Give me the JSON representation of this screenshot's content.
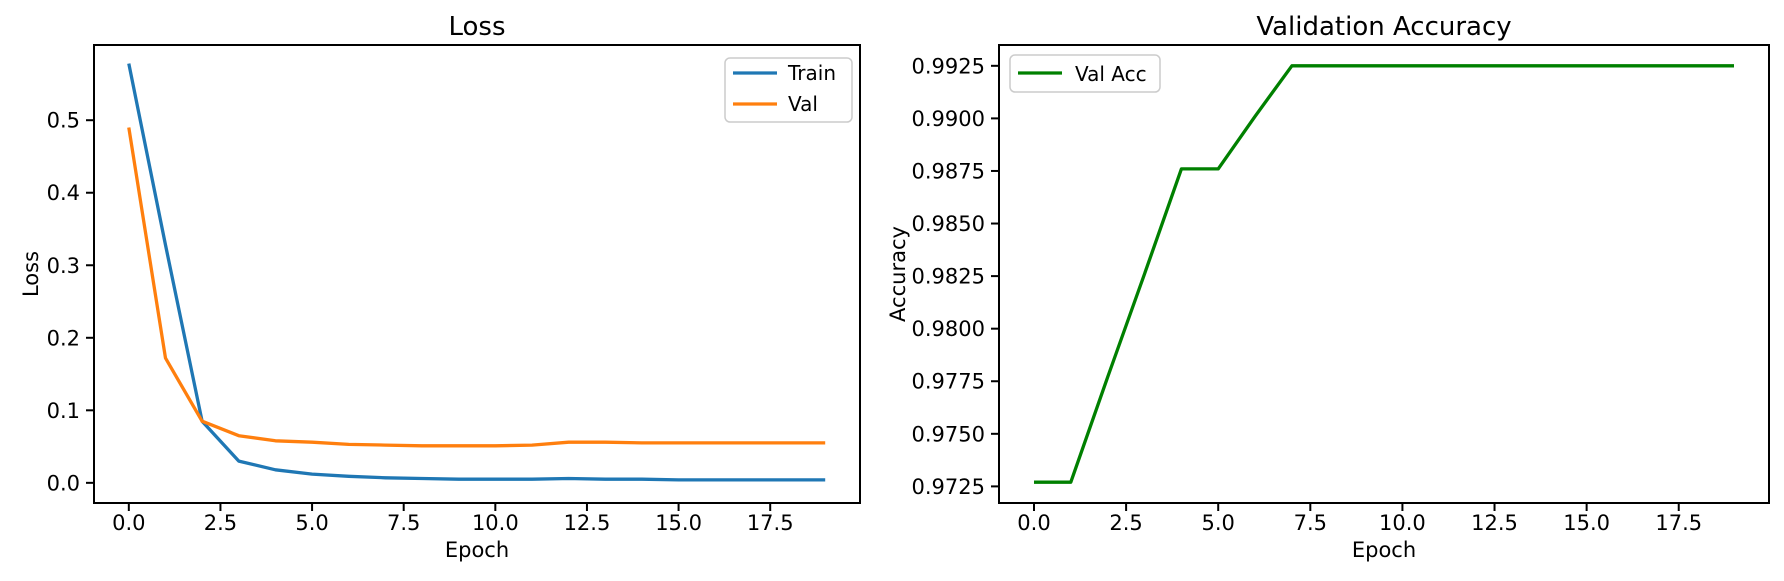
{
  "figure": {
    "background": "#ffffff",
    "axis_color": "#000000",
    "text_color": "#000000"
  },
  "chart_data": [
    {
      "type": "line",
      "title": "Loss",
      "xlabel": "Epoch",
      "ylabel": "Loss",
      "x": [
        0,
        1,
        2,
        3,
        4,
        5,
        6,
        7,
        8,
        9,
        10,
        11,
        12,
        13,
        14,
        15,
        16,
        17,
        18,
        19
      ],
      "series": [
        {
          "name": "Train",
          "color": "#1f77b4",
          "values": [
            0.578,
            0.328,
            0.085,
            0.03,
            0.018,
            0.012,
            0.009,
            0.007,
            0.006,
            0.005,
            0.005,
            0.005,
            0.006,
            0.005,
            0.005,
            0.004,
            0.004,
            0.004,
            0.004,
            0.004
          ]
        },
        {
          "name": "Val",
          "color": "#ff7f0e",
          "values": [
            0.49,
            0.172,
            0.085,
            0.065,
            0.058,
            0.056,
            0.053,
            0.052,
            0.051,
            0.051,
            0.051,
            0.052,
            0.056,
            0.056,
            0.055,
            0.055,
            0.055,
            0.055,
            0.055,
            0.055
          ]
        }
      ],
      "xlim": [
        -0.95,
        19.95
      ],
      "ylim": [
        -0.0278,
        0.6037
      ],
      "xticks": {
        "values": [
          0,
          2.5,
          5,
          7.5,
          10,
          12.5,
          15,
          17.5
        ],
        "labels": [
          "0.0",
          "2.5",
          "5.0",
          "7.5",
          "10.0",
          "12.5",
          "15.0",
          "17.5"
        ]
      },
      "yticks": {
        "values": [
          0.0,
          0.1,
          0.2,
          0.3,
          0.4,
          0.5
        ],
        "labels": [
          "0.0",
          "0.1",
          "0.2",
          "0.3",
          "0.4",
          "0.5"
        ]
      },
      "grid": false,
      "legend": {
        "location": "upper right",
        "labels": [
          "Train",
          "Val"
        ]
      }
    },
    {
      "type": "line",
      "title": "Validation Accuracy",
      "xlabel": "Epoch",
      "ylabel": "Accuracy",
      "x": [
        0,
        1,
        2,
        3,
        4,
        5,
        6,
        7,
        8,
        9,
        10,
        11,
        12,
        13,
        14,
        15,
        16,
        17,
        18,
        19
      ],
      "series": [
        {
          "name": "Val Acc",
          "color": "#008000",
          "values": [
            0.9727,
            0.9727,
            0.9777,
            0.9826,
            0.9876,
            0.9876,
            0.9901,
            0.9925,
            0.9925,
            0.9925,
            0.9925,
            0.9925,
            0.9925,
            0.9925,
            0.9925,
            0.9925,
            0.9925,
            0.9925,
            0.9925,
            0.9925
          ]
        }
      ],
      "xlim": [
        -0.95,
        19.95
      ],
      "ylim": [
        0.97171,
        0.99349
      ],
      "xticks": {
        "values": [
          0,
          2.5,
          5,
          7.5,
          10,
          12.5,
          15,
          17.5
        ],
        "labels": [
          "0.0",
          "2.5",
          "5.0",
          "7.5",
          "10.0",
          "12.5",
          "15.0",
          "17.5"
        ]
      },
      "yticks": {
        "values": [
          0.9725,
          0.975,
          0.9775,
          0.98,
          0.9825,
          0.985,
          0.9875,
          0.99,
          0.9925
        ],
        "labels": [
          "0.9725",
          "0.9750",
          "0.9775",
          "0.9800",
          "0.9825",
          "0.9850",
          "0.9875",
          "0.9900",
          "0.9925"
        ]
      },
      "grid": false,
      "legend": {
        "location": "upper left",
        "labels": [
          "Val Acc"
        ]
      }
    }
  ]
}
